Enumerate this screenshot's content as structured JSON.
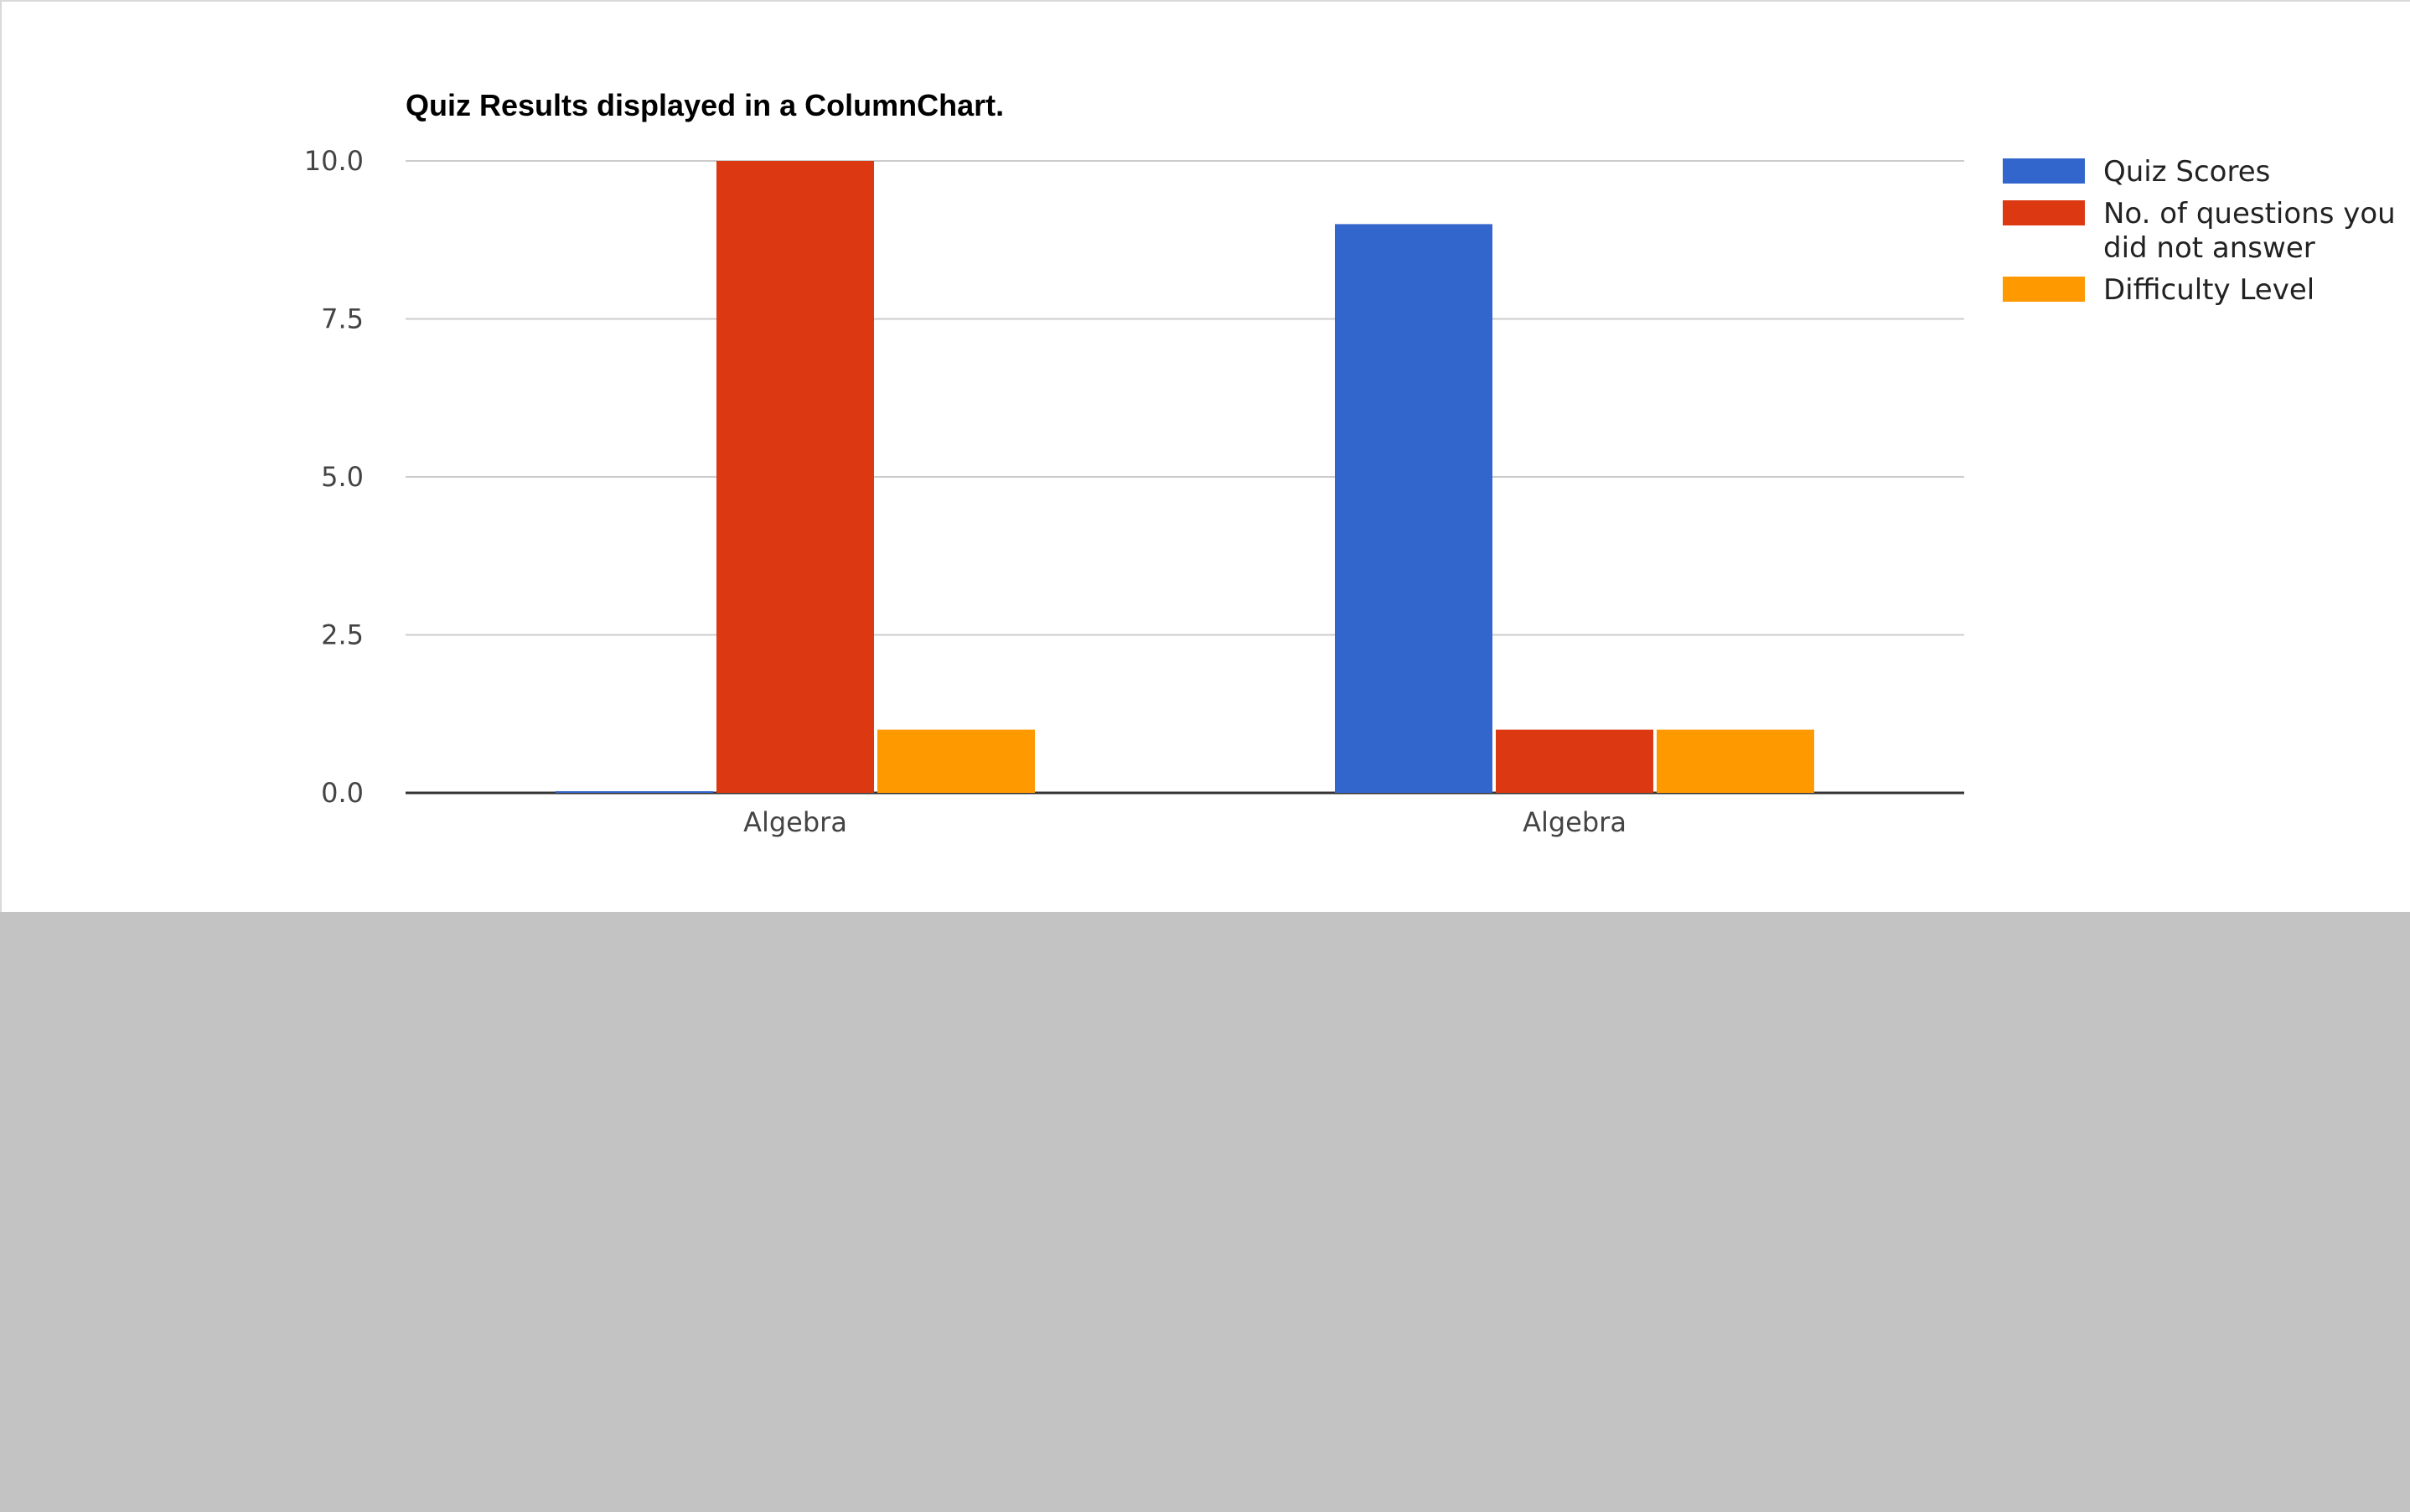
{
  "chart_data": {
    "type": "bar",
    "title": "Quiz Results displayed in a ColumnChart.",
    "xlabel": "",
    "ylabel": "",
    "categories": [
      "Algebra",
      "Algebra"
    ],
    "series": [
      {
        "name": "Quiz Scores",
        "color": "#3366cc",
        "values": [
          0,
          9
        ]
      },
      {
        "name": "No. of questions you did not answer",
        "color": "#dc3912",
        "values": [
          10,
          1
        ]
      },
      {
        "name": "Difficulty Level",
        "color": "#ff9900",
        "values": [
          1,
          1
        ]
      }
    ],
    "ylim": [
      0,
      10
    ],
    "yticks": [
      "0.0",
      "2.5",
      "5.0",
      "7.5",
      "10.0"
    ],
    "ytick_values": [
      0,
      2.5,
      5,
      7.5,
      10
    ],
    "grid": true,
    "legend_position": "right"
  },
  "colors": {
    "panel_background": "#ffffff",
    "page_background": "#c3c3c3",
    "gridline": "#cccccc",
    "axis_baseline": "#333333"
  }
}
